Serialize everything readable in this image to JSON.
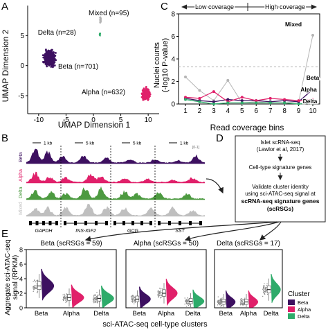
{
  "colors": {
    "beta": "#3d1060",
    "alpha": "#e0206a",
    "delta": "#2eab6a",
    "mixed": "#b5b5b5",
    "track_green": "#4c9a40",
    "track_grey": "#bfbfbf",
    "threshold": "#b0b0b0"
  },
  "panel_labels": {
    "a": "A",
    "b": "B",
    "c": "C",
    "d": "D",
    "e": "E"
  },
  "panel_a": {
    "chart_data": {
      "type": "scatter",
      "xlabel": "UMAP Dimension 1",
      "ylabel": "UMAP Dimension 2",
      "xlim": [
        -12,
        12
      ],
      "ylim": [
        -8,
        10
      ],
      "x_ticks": [
        "-10",
        "-5",
        "0",
        "5",
        "10"
      ],
      "y_ticks": [
        "-5",
        "0",
        "5"
      ],
      "clusters": [
        {
          "label": "Beta (n=701)",
          "cx": -8.0,
          "cy": 1.2,
          "color": "beta"
        },
        {
          "label": "Alpha (n=632)",
          "cx": 9.6,
          "cy": -4.7,
          "color": "alpha"
        },
        {
          "label": "Delta (n=28)",
          "cx": 1.2,
          "cy": 5.2,
          "color": "delta"
        },
        {
          "label": "Mixed (n=95)",
          "cx": 1.3,
          "cy": 7.6,
          "color": "mixed"
        }
      ]
    }
  },
  "panel_b": {
    "scales": [
      "1 kb",
      "5 kb",
      "5 kb",
      "1 kb"
    ],
    "range_label": "[0-1]",
    "tracks": [
      {
        "label": "Beta",
        "color": "beta"
      },
      {
        "label": "Alpha",
        "color": "alpha"
      },
      {
        "label": "Delta",
        "color": "track_green"
      },
      {
        "label": "Mixed",
        "color": "track_grey"
      }
    ],
    "genes": [
      "GAPDH",
      "INS-IGF2",
      "GCG",
      "SST"
    ]
  },
  "panel_c": {
    "chart_data": {
      "type": "line",
      "xlabel": "Read coverage bins",
      "ylabel": [
        "Nuclei counts",
        "(-log10 P-value)"
      ],
      "x": [
        1,
        2,
        3,
        4,
        5,
        6,
        7,
        8,
        9,
        10
      ],
      "ylim": [
        0,
        8
      ],
      "y_ticks": [
        "0",
        "2",
        "4",
        "6",
        "8"
      ],
      "threshold": 3.3,
      "arrow_left": "Low coverage",
      "arrow_right": "High coverage",
      "series": [
        {
          "name": "Mixed",
          "color": "mixed",
          "values": [
            2.4,
            1.2,
            0.3,
            2.1,
            0.1,
            0.2,
            0.1,
            0.1,
            0.2,
            6.1
          ]
        },
        {
          "name": "Beta",
          "color": "beta",
          "values": [
            0.5,
            0.3,
            0.2,
            0.4,
            0.3,
            0.3,
            0.2,
            0.3,
            0.2,
            1.3
          ]
        },
        {
          "name": "Alpha",
          "color": "alpha",
          "values": [
            0.6,
            0.5,
            1.1,
            0.2,
            0.6,
            0.3,
            0.5,
            0.4,
            0.3,
            0.4
          ]
        },
        {
          "name": "Delta",
          "color": "delta",
          "values": [
            0.4,
            0.2,
            0.0,
            0.1,
            0.1,
            0.1,
            0.1,
            0.1,
            0.0,
            0.1
          ]
        }
      ]
    }
  },
  "panel_d": {
    "steps": [
      [
        "Islet scRNA-seq",
        "(Lawlor et al, 2017)"
      ],
      [
        "Cell-type signature genes"
      ],
      [
        "Validate cluster identity",
        "using sci-ATAC-seq signal at"
      ],
      [
        "scRNA-seq signature genes",
        "(scRSGs)"
      ]
    ]
  },
  "panel_e": {
    "chart_data": {
      "type": "violin",
      "ylabel": [
        "Aggregate sci-ATAC-seq",
        "signal (RPKM)"
      ],
      "xlabel": "sci-ATAC-seq cell-type clusters",
      "ylim": [
        0,
        8
      ],
      "y_ticks": [
        "0",
        "2",
        "4",
        "6",
        "8"
      ],
      "categories": [
        "Beta",
        "Alpha",
        "Delta"
      ],
      "legend_title": "Cluster",
      "legend": [
        "Beta",
        "Alpha",
        "Delta"
      ],
      "panels": [
        {
          "title": "Beta (scRSGs = 59)",
          "medians": [
            3.0,
            1.4,
            1.3
          ]
        },
        {
          "title": "Alpha (scRSGs = 50)",
          "medians": [
            1.2,
            2.0,
            0.9
          ]
        },
        {
          "title": "Delta (scRSGs = 17)",
          "medians": [
            0.8,
            0.8,
            2.5
          ]
        }
      ]
    }
  }
}
